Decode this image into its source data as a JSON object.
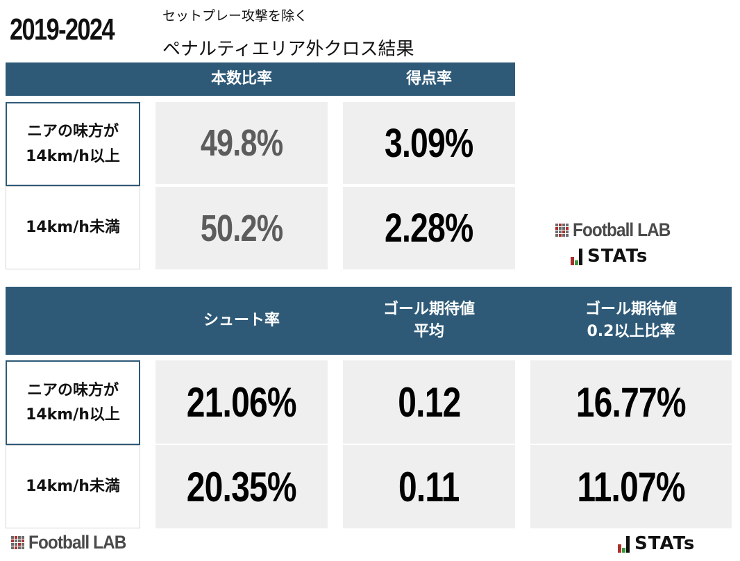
{
  "header": {
    "period": "2019-2024",
    "subtitle": "セットプレー攻撃を除く",
    "title": "ペナルティエリア外クロス結果"
  },
  "table1": {
    "columns": [
      "本数比率",
      "得点率"
    ],
    "rows": [
      {
        "label_line1": "ニアの味方が",
        "label_line2": "14km/h以上",
        "values": [
          "49.8%",
          "3.09%"
        ]
      },
      {
        "label_line1": "14km/h未満",
        "label_line2": "",
        "values": [
          "50.2%",
          "2.28%"
        ]
      }
    ]
  },
  "table2": {
    "columns": [
      {
        "line1": "シュート率",
        "line2": ""
      },
      {
        "line1": "ゴール期待値",
        "line2": "平均"
      },
      {
        "line1": "ゴール期待値",
        "line2": "0.2以上比率"
      }
    ],
    "rows": [
      {
        "label_line1": "ニアの味方が",
        "label_line2": "14km/h以上",
        "values": [
          "21.06%",
          "0.12",
          "16.77%"
        ]
      },
      {
        "label_line1": "14km/h未満",
        "label_line2": "",
        "values": [
          "20.35%",
          "0.11",
          "11.07%"
        ]
      }
    ]
  },
  "branding": {
    "football_lab": "Football LAB",
    "stats": "STATs",
    "colors": {
      "header": "#2e5a78",
      "cell": "#efefef",
      "accent_red": "#a8302c",
      "accent_green": "#3b9a3f"
    },
    "icons": [
      "football-lab-grid-icon",
      "stats-bars-icon"
    ]
  }
}
